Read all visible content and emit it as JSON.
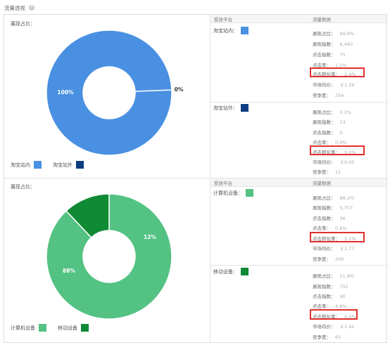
{
  "page": {
    "title": "流量透视",
    "help_icon": "question-icon"
  },
  "colors": {
    "inside": "#4a90e2",
    "outside": "#0b3d80",
    "computer": "#53c283",
    "mobile": "#0f8a35",
    "highlight": "#e0302c"
  },
  "chart_data": [
    {
      "type": "pie",
      "title": "展现占比：",
      "categories": [
        "淘宝站内",
        "淘宝站外"
      ],
      "values": [
        100,
        0
      ],
      "labels": [
        "100%",
        "0%"
      ]
    },
    {
      "type": "pie",
      "title": "展现占比：",
      "categories": [
        "计算机设备",
        "移动设备"
      ],
      "values": [
        88,
        12
      ],
      "labels": [
        "88%",
        "12%"
      ]
    }
  ],
  "section1": {
    "pie_label": "展现占比：",
    "legend": [
      {
        "label": "淘宝站内",
        "color": "#4a90e2"
      },
      {
        "label": "淘宝站外",
        "color": "#0b3d80"
      }
    ],
    "header": {
      "col1": "投放平台",
      "col2": "流量数据"
    },
    "platforms": [
      {
        "name": "淘宝站内：",
        "color": "#4a90e2",
        "metrics": [
          {
            "k": "展现占比：",
            "v": "99.8%"
          },
          {
            "k": "展现指数：",
            "v": "6,440"
          },
          {
            "k": "点击指数：",
            "v": "75"
          },
          {
            "k": "点击率：",
            "v": "1.1%"
          },
          {
            "k": "点击转化率：",
            "v": "2.4%"
          },
          {
            "k": "市场均价：",
            "v": "￥1.59"
          },
          {
            "k": "竞争度：",
            "v": "254"
          }
        ]
      },
      {
        "name": "淘宝站外：",
        "color": "#0b3d80",
        "metrics": [
          {
            "k": "展现占比：",
            "v": "0.2%"
          },
          {
            "k": "展现指数：",
            "v": "13"
          },
          {
            "k": "点击指数：",
            "v": "0"
          },
          {
            "k": "点击率：",
            "v": "0.0%"
          },
          {
            "k": "点击转化率：",
            "v": "0.0%"
          },
          {
            "k": "市场均价：",
            "v": "￥0.00"
          },
          {
            "k": "竞争度：",
            "v": "11"
          }
        ]
      }
    ]
  },
  "section2": {
    "pie_label": "展现占比：",
    "legend": [
      {
        "label": "计算机设备",
        "color": "#53c283"
      },
      {
        "label": "移动设备",
        "color": "#0f8a35"
      }
    ],
    "header": {
      "col1": "投放平台",
      "col2": "流量数据"
    },
    "platforms": [
      {
        "name": "计算机设备：",
        "color": "#53c283",
        "metrics": [
          {
            "k": "展现占比：",
            "v": "88.2%"
          },
          {
            "k": "展现指数：",
            "v": "5,707"
          },
          {
            "k": "点击指数：",
            "v": "36"
          },
          {
            "k": "点击率：",
            "v": "0.6%"
          },
          {
            "k": "点击转化率：",
            "v": "5.1%"
          },
          {
            "k": "市场均价：",
            "v": "￥1.77"
          },
          {
            "k": "竞争度：",
            "v": "200"
          }
        ]
      },
      {
        "name": "移动设备：",
        "color": "#0f8a35",
        "metrics": [
          {
            "k": "展现占比：",
            "v": "11.8%"
          },
          {
            "k": "展现指数：",
            "v": "791"
          },
          {
            "k": "点击指数：",
            "v": "40"
          },
          {
            "k": "点击率：",
            "v": "4.8%"
          },
          {
            "k": "点击转化率：",
            "v": "0.0%"
          },
          {
            "k": "市场均价：",
            "v": "￥1.42"
          },
          {
            "k": "竞争度：",
            "v": "65"
          }
        ]
      }
    ]
  }
}
